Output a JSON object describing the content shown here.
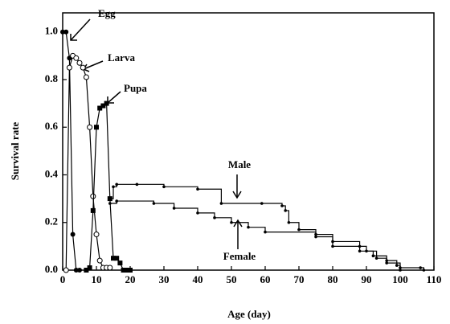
{
  "chart_data": {
    "type": "line",
    "x_label": "Age (day)",
    "y_label": "Survival rate",
    "xlim": [
      0,
      110
    ],
    "xticks": [
      0,
      10,
      20,
      30,
      40,
      50,
      60,
      70,
      80,
      90,
      100,
      110
    ],
    "ylim": [
      0,
      1.08
    ],
    "yticks": [
      {
        "value": 0,
        "label": "0.0"
      },
      0.2,
      0.4,
      0.6,
      0.8,
      {
        "value": 1,
        "label": "1.0"
      }
    ],
    "annotations": [
      "Egg",
      "Larva",
      "Pupa",
      "Male",
      "Female"
    ],
    "series": [
      {
        "name": "Egg",
        "color": "#000000",
        "marker": "filled-circle",
        "step": false,
        "x": [
          0,
          1,
          2,
          3,
          4,
          5
        ],
        "values": [
          1.0,
          1.0,
          0.89,
          0.15,
          0.0,
          0.0
        ]
      },
      {
        "name": "Larva",
        "color": "#000000",
        "marker": "open-circle",
        "step": false,
        "x": [
          1,
          2,
          3,
          4,
          5,
          6,
          7,
          8,
          9,
          10,
          11,
          12,
          13,
          14
        ],
        "values": [
          0.0,
          0.85,
          0.9,
          0.89,
          0.87,
          0.85,
          0.81,
          0.6,
          0.31,
          0.15,
          0.04,
          0.01,
          0.01,
          0.01
        ]
      },
      {
        "name": "Pupa",
        "color": "#000000",
        "marker": "filled-square",
        "step": false,
        "x": [
          7,
          8,
          9,
          10,
          11,
          12,
          13,
          14,
          15,
          16,
          17,
          18,
          19,
          20
        ],
        "values": [
          0.0,
          0.01,
          0.25,
          0.6,
          0.68,
          0.69,
          0.7,
          0.3,
          0.05,
          0.05,
          0.03,
          0.0,
          0.0,
          0.0
        ]
      },
      {
        "name": "Male",
        "color": "#000000",
        "marker": "small-dot",
        "step": true,
        "x": [
          14,
          15,
          16,
          22,
          30,
          40,
          47,
          59,
          65,
          66,
          67,
          70,
          75,
          80,
          88,
          90,
          92,
          96,
          99,
          100,
          106,
          107
        ],
        "values": [
          0.3,
          0.35,
          0.36,
          0.36,
          0.35,
          0.34,
          0.28,
          0.28,
          0.27,
          0.25,
          0.2,
          0.17,
          0.15,
          0.12,
          0.1,
          0.08,
          0.06,
          0.04,
          0.02,
          0.01,
          0.01,
          0.0
        ]
      },
      {
        "name": "Female",
        "color": "#000000",
        "marker": "small-dot",
        "step": true,
        "x": [
          14,
          16,
          27,
          33,
          40,
          45,
          50,
          55,
          60,
          75,
          80,
          88,
          93,
          96,
          100
        ],
        "values": [
          0.28,
          0.29,
          0.28,
          0.26,
          0.24,
          0.22,
          0.2,
          0.18,
          0.16,
          0.14,
          0.1,
          0.08,
          0.05,
          0.03,
          0.0
        ]
      }
    ]
  }
}
